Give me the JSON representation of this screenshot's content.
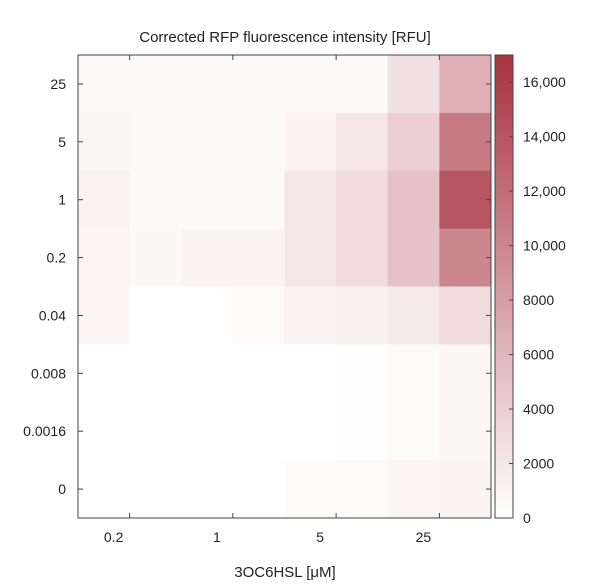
{
  "chart_data": {
    "type": "heatmap",
    "title": "Corrected RFP fluorescence intensity [RFU]",
    "xlabel": "3OC6HSL [μM]",
    "ylabel": "",
    "x_tick_labels": [
      "0.2",
      "1",
      "5",
      "25"
    ],
    "y_tick_labels": [
      "25",
      "5",
      "1",
      "0.2",
      "0.04",
      "0.008",
      "0.0016",
      "0"
    ],
    "columns": 8,
    "rows": 8,
    "colorbar": {
      "min": 0,
      "max": 17000,
      "ticks": [
        0,
        2000,
        4000,
        6000,
        8000,
        10000,
        12000,
        14000,
        16000
      ],
      "tick_labels": [
        "0",
        "2000",
        "4000",
        "6000",
        "8000",
        "10,000",
        "12,000",
        "14,000",
        "16,000"
      ],
      "color_low": "#ffffff",
      "color_high": "#a8313f"
    },
    "values": [
      [
        500,
        500,
        500,
        500,
        500,
        500,
        2500,
        6500
      ],
      [
        700,
        500,
        500,
        500,
        1000,
        2000,
        4000,
        11000
      ],
      [
        1000,
        500,
        500,
        500,
        2000,
        3000,
        5000,
        14000
      ],
      [
        900,
        600,
        1000,
        1000,
        2000,
        3000,
        5000,
        10000
      ],
      [
        800,
        100,
        100,
        400,
        1000,
        1200,
        1700,
        3000
      ],
      [
        100,
        100,
        100,
        100,
        100,
        200,
        400,
        700
      ],
      [
        100,
        100,
        100,
        100,
        100,
        200,
        400,
        700
      ],
      [
        100,
        100,
        100,
        100,
        400,
        400,
        800,
        1000
      ]
    ]
  }
}
